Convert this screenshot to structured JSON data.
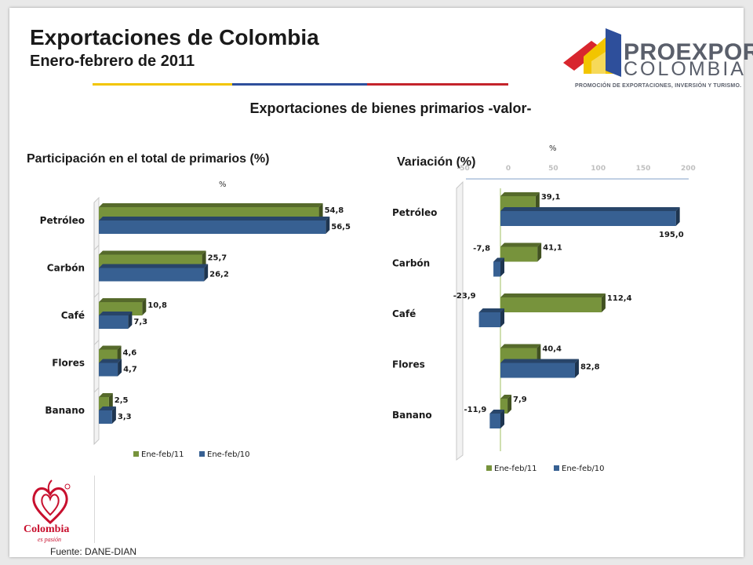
{
  "header": {
    "title": "Exportaciones de Colombia",
    "subtitle": "Enero-febrero de 2011"
  },
  "section_title": "Exportaciones de bienes primarios -valor-",
  "logo": {
    "line1": "PROEXPORT",
    "line2": "COLOMBIA",
    "tagline": "PROMOCIÓN DE EXPORTACIONES, INVERSIÓN Y TURISMO."
  },
  "country_brand": {
    "word": "Colombia",
    "tag": "es pasión"
  },
  "source": "Fuente: DANE-DIAN",
  "colors": {
    "green": "#77933c",
    "blue": "#376092",
    "stripe_yellow": "#f2c500",
    "stripe_blue": "#2e4f9b",
    "stripe_red": "#c4232b",
    "brand_red": "#c8102e"
  },
  "chart_data": [
    {
      "type": "bar",
      "orientation": "horizontal",
      "title": "Participación en el total de primarios (%)",
      "unit": "%",
      "categories": [
        "Petróleo",
        "Carbón",
        "Café",
        "Flores",
        "Banano"
      ],
      "series": [
        {
          "name": "Ene-feb/11",
          "color": "#77933c",
          "values": [
            54.8,
            25.7,
            10.8,
            4.6,
            2.5
          ],
          "labels": [
            "54,8",
            "25,7",
            "10,8",
            "4,6",
            "2,5"
          ]
        },
        {
          "name": "Ene-feb/10",
          "color": "#376092",
          "values": [
            56.5,
            26.2,
            7.3,
            4.7,
            3.3
          ],
          "labels": [
            "56,5",
            "26,2",
            "7,3",
            "4,7",
            "3,3"
          ]
        }
      ],
      "xlim": [
        0,
        60
      ],
      "legend": "bottom",
      "grid": false
    },
    {
      "type": "bar",
      "orientation": "horizontal",
      "title": "Variación (%)",
      "unit": "%",
      "categories": [
        "Petróleo",
        "Carbón",
        "Café",
        "Flores",
        "Banano"
      ],
      "series": [
        {
          "name": "Ene-feb/11",
          "color": "#77933c",
          "values": [
            39.1,
            41.1,
            112.4,
            40.4,
            7.9
          ],
          "labels": [
            "39,1",
            "41,1",
            "112,4",
            "40,4",
            "7,9"
          ]
        },
        {
          "name": "Ene-feb/10",
          "color": "#376092",
          "values": [
            195.0,
            -7.8,
            -23.9,
            82.8,
            -11.9
          ],
          "labels": [
            "195,0",
            "-7,8",
            "-23,9",
            "82,8",
            "-11,9"
          ]
        }
      ],
      "xticks": [
        "-50",
        "0",
        "50",
        "100",
        "150",
        "200"
      ],
      "xlim": [
        -50,
        200
      ],
      "legend": "bottom",
      "grid": false
    }
  ]
}
